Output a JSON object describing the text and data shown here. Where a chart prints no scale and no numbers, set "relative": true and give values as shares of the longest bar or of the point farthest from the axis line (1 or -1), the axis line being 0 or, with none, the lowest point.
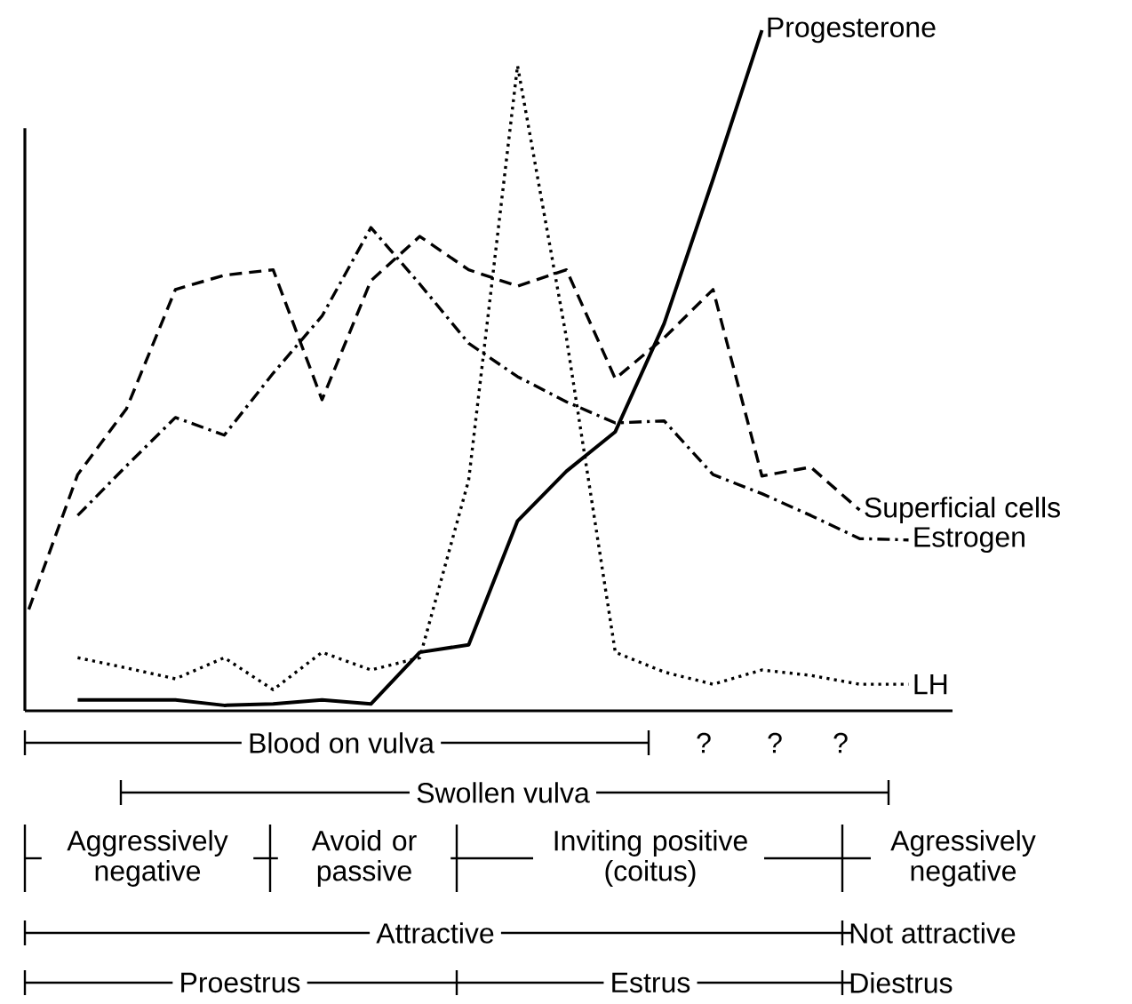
{
  "chart_data": {
    "type": "line",
    "relative": true,
    "legend": false,
    "categories": [
      null,
      null,
      null,
      null,
      null,
      null,
      null,
      null,
      null,
      null,
      null,
      null,
      null,
      null,
      null,
      null,
      null,
      null,
      null
    ],
    "series": [
      {
        "name": "Superficial cells",
        "color": "#000000",
        "line_style": "dashed",
        "values": [
          0.149,
          0.347,
          0.444,
          0.619,
          0.64,
          0.648,
          0.457,
          0.632,
          0.697,
          0.648,
          0.624,
          0.648,
          0.488,
          0.548,
          0.619,
          0.345,
          0.358,
          0.295,
          null
        ]
      },
      {
        "name": "Estrogen",
        "color": "#000000",
        "line_style": "dashdot",
        "values": [
          null,
          0.287,
          0.36,
          0.431,
          0.405,
          0.496,
          0.58,
          0.71,
          0.627,
          0.54,
          0.491,
          0.454,
          0.423,
          0.426,
          0.347,
          0.319,
          0.287,
          0.253,
          0.251
        ]
      },
      {
        "name": "LH",
        "color": "#000000",
        "line_style": "dotted",
        "values": [
          null,
          0.078,
          0.063,
          0.047,
          0.078,
          0.031,
          0.086,
          0.06,
          0.078,
          0.339,
          0.948,
          0.548,
          0.086,
          0.057,
          0.039,
          0.06,
          0.052,
          0.039,
          0.039
        ]
      },
      {
        "name": "Progesterone",
        "color": "#000000",
        "line_style": "solid",
        "values": [
          null,
          0.016,
          0.016,
          0.016,
          0.008,
          0.01,
          0.016,
          0.01,
          0.086,
          0.097,
          0.279,
          0.352,
          0.41,
          0.569,
          0.781,
          1.0,
          null,
          null,
          null
        ]
      }
    ],
    "annotations": [
      "Blood on vulva",
      "?",
      "?",
      "?",
      "Swollen vulva",
      "Aggressively negative",
      "Avoid or passive",
      "Inviting positive (coitus)",
      "Agressively negative",
      "Attractive",
      "Not attractive",
      "Proestrus",
      "Estrus",
      "Diestrus"
    ]
  }
}
